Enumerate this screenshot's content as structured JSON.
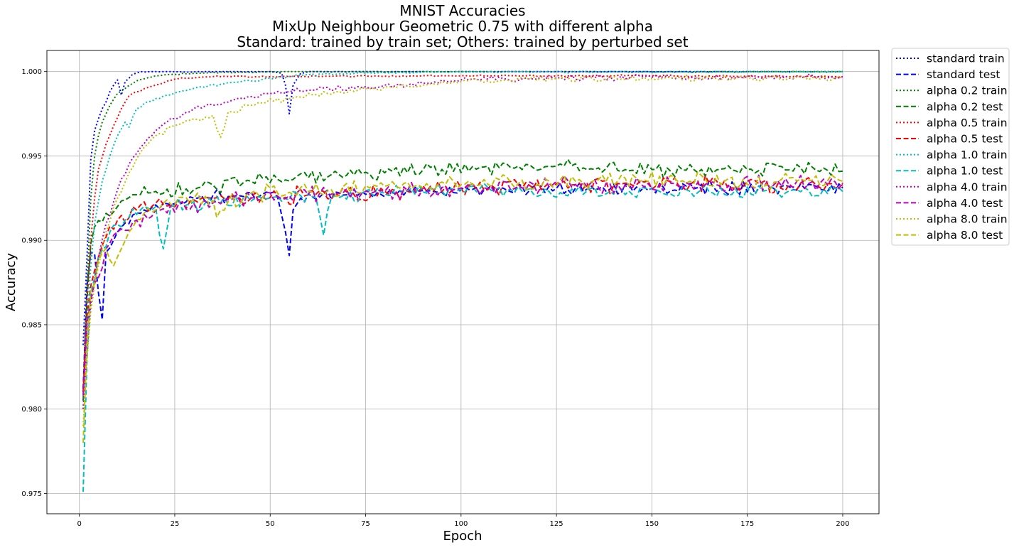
{
  "chart_data": {
    "type": "line",
    "title_lines": [
      "MNIST Accuracies",
      "MixUp Neighbour Geometric 0.75 with different alpha",
      "Standard: trained by train set; Others: trained by perturbed set"
    ],
    "xlabel": "Epoch",
    "ylabel": "Accuracy",
    "xlim": [
      -8.5,
      209.5
    ],
    "ylim": [
      0.9738,
      1.00125
    ],
    "xticks": [
      0,
      25,
      50,
      75,
      100,
      125,
      150,
      175,
      200
    ],
    "xtick_labels": [
      "0",
      "25",
      "50",
      "75",
      "100",
      "125",
      "150",
      "175",
      "200"
    ],
    "yticks": [
      0.975,
      0.98,
      0.985,
      0.99,
      0.995,
      1.0
    ],
    "ytick_labels": [
      "0.975",
      "0.980",
      "0.985",
      "0.990",
      "0.995",
      "1.000"
    ],
    "grid": true,
    "legend_position": "outside-upper-right",
    "x_start": 1,
    "x_end": 200,
    "series": [
      {
        "name": "standard train",
        "color": "#0000ff",
        "linestyle": "dotted",
        "anchors": [
          [
            1,
            0.9838
          ],
          [
            2,
            0.989
          ],
          [
            3,
            0.9948
          ],
          [
            4,
            0.9965
          ],
          [
            5,
            0.9972
          ],
          [
            6,
            0.9978
          ],
          [
            7,
            0.9982
          ],
          [
            8,
            0.9988
          ],
          [
            9,
            0.9992
          ],
          [
            10,
            0.9995
          ],
          [
            11,
            0.9986
          ],
          [
            12,
            0.9994
          ],
          [
            14,
            0.99985
          ],
          [
            16,
            1.0
          ],
          [
            50,
            1.0
          ],
          [
            53,
            0.9999
          ],
          [
            54,
            0.9992
          ],
          [
            55,
            0.9975
          ],
          [
            56,
            0.9992
          ],
          [
            58,
            0.9999
          ],
          [
            60,
            1.0
          ],
          [
            200,
            1.0
          ]
        ],
        "noise": 3e-05
      },
      {
        "name": "standard test",
        "color": "#0000ff",
        "linestyle": "dashed",
        "anchors": [
          [
            1,
            0.9812
          ],
          [
            2,
            0.9873
          ],
          [
            3,
            0.9893
          ],
          [
            4,
            0.9892
          ],
          [
            5,
            0.9869
          ],
          [
            6,
            0.9853
          ],
          [
            7,
            0.9893
          ],
          [
            10,
            0.9905
          ],
          [
            14,
            0.9915
          ],
          [
            20,
            0.9921
          ],
          [
            30,
            0.9925
          ],
          [
            40,
            0.9926
          ],
          [
            50,
            0.9928
          ],
          [
            52,
            0.9925
          ],
          [
            53,
            0.9915
          ],
          [
            54,
            0.9905
          ],
          [
            55,
            0.9891
          ],
          [
            56,
            0.9918
          ],
          [
            58,
            0.9925
          ],
          [
            70,
            0.9927
          ],
          [
            100,
            0.993
          ],
          [
            150,
            0.9931
          ],
          [
            200,
            0.9931
          ]
        ],
        "noise": 0.0004
      },
      {
        "name": "alpha 0.2 train",
        "color": "#008000",
        "linestyle": "dotted",
        "anchors": [
          [
            1,
            0.981
          ],
          [
            2,
            0.9872
          ],
          [
            3,
            0.9925
          ],
          [
            4,
            0.995
          ],
          [
            5,
            0.9962
          ],
          [
            6,
            0.997
          ],
          [
            8,
            0.998
          ],
          [
            10,
            0.9987
          ],
          [
            12,
            0.999
          ],
          [
            15,
            0.99945
          ],
          [
            20,
            0.99975
          ],
          [
            30,
            0.9999
          ],
          [
            50,
            1.0
          ],
          [
            200,
            1.0
          ]
        ],
        "noise": 5e-05
      },
      {
        "name": "alpha 0.2 test",
        "color": "#008000",
        "linestyle": "dashed",
        "anchors": [
          [
            1,
            0.9805
          ],
          [
            2,
            0.9865
          ],
          [
            3,
            0.9898
          ],
          [
            4,
            0.9908
          ],
          [
            6,
            0.9911
          ],
          [
            10,
            0.992
          ],
          [
            15,
            0.9927
          ],
          [
            20,
            0.9929
          ],
          [
            30,
            0.993
          ],
          [
            45,
            0.9935
          ],
          [
            60,
            0.9937
          ],
          [
            80,
            0.994
          ],
          [
            95,
            0.9942
          ],
          [
            110,
            0.9943
          ],
          [
            125,
            0.9944
          ],
          [
            150,
            0.9942
          ],
          [
            175,
            0.9942
          ],
          [
            200,
            0.9941
          ]
        ],
        "noise": 0.00045
      },
      {
        "name": "alpha 0.5 train",
        "color": "#ff0000",
        "linestyle": "dotted",
        "anchors": [
          [
            1,
            0.981
          ],
          [
            2,
            0.9863
          ],
          [
            3,
            0.99
          ],
          [
            4,
            0.9925
          ],
          [
            5,
            0.9942
          ],
          [
            7,
            0.9957
          ],
          [
            9,
            0.9968
          ],
          [
            11,
            0.9978
          ],
          [
            13,
            0.99855
          ],
          [
            15,
            0.9988
          ],
          [
            20,
            0.9992
          ],
          [
            25,
            0.99955
          ],
          [
            35,
            0.9997
          ],
          [
            50,
            0.9997
          ],
          [
            100,
            0.99975
          ],
          [
            150,
            0.99975
          ],
          [
            200,
            0.9997
          ]
        ],
        "noise": 5e-05
      },
      {
        "name": "alpha 0.5 test",
        "color": "#ff0000",
        "linestyle": "dashed",
        "anchors": [
          [
            1,
            0.981
          ],
          [
            2,
            0.9855
          ],
          [
            3,
            0.9873
          ],
          [
            5,
            0.989
          ],
          [
            7,
            0.9902
          ],
          [
            10,
            0.9912
          ],
          [
            15,
            0.9918
          ],
          [
            20,
            0.9922
          ],
          [
            30,
            0.9924
          ],
          [
            45,
            0.9925
          ],
          [
            60,
            0.9927
          ],
          [
            80,
            0.9929
          ],
          [
            100,
            0.9931
          ],
          [
            130,
            0.9933
          ],
          [
            160,
            0.9933
          ],
          [
            200,
            0.9933
          ]
        ],
        "noise": 0.0005
      },
      {
        "name": "alpha 1.0 train",
        "color": "#00bfbf",
        "linestyle": "dotted",
        "anchors": [
          [
            1,
            0.98
          ],
          [
            2,
            0.985
          ],
          [
            3,
            0.9885
          ],
          [
            4,
            0.991
          ],
          [
            6,
            0.9935
          ],
          [
            8,
            0.995
          ],
          [
            10,
            0.9962
          ],
          [
            12,
            0.997
          ],
          [
            13,
            0.9967
          ],
          [
            15,
            0.9978
          ],
          [
            20,
            0.9984
          ],
          [
            30,
            0.999
          ],
          [
            40,
            0.99935
          ],
          [
            50,
            0.9996
          ],
          [
            60,
            0.9998
          ],
          [
            75,
            0.9999
          ],
          [
            100,
            1.0
          ],
          [
            200,
            1.0
          ]
        ],
        "noise": 8e-05
      },
      {
        "name": "alpha 1.0 test",
        "color": "#00bfbf",
        "linestyle": "dashed",
        "anchors": [
          [
            1,
            0.9751
          ],
          [
            2,
            0.983
          ],
          [
            3,
            0.9868
          ],
          [
            5,
            0.989
          ],
          [
            8,
            0.9905
          ],
          [
            12,
            0.9912
          ],
          [
            16,
            0.9918
          ],
          [
            20,
            0.992
          ],
          [
            22,
            0.9895
          ],
          [
            24,
            0.992
          ],
          [
            35,
            0.9922
          ],
          [
            50,
            0.9925
          ],
          [
            62,
            0.9925
          ],
          [
            64,
            0.9903
          ],
          [
            66,
            0.9925
          ],
          [
            80,
            0.9928
          ],
          [
            100,
            0.993
          ],
          [
            130,
            0.9929
          ],
          [
            160,
            0.9929
          ],
          [
            200,
            0.9929
          ]
        ],
        "noise": 0.0004
      },
      {
        "name": "alpha 4.0 train",
        "color": "#bf00bf",
        "linestyle": "dotted",
        "anchors": [
          [
            1,
            0.98
          ],
          [
            2,
            0.9835
          ],
          [
            3,
            0.9862
          ],
          [
            5,
            0.989
          ],
          [
            7,
            0.991
          ],
          [
            10,
            0.993
          ],
          [
            13,
            0.9945
          ],
          [
            16,
            0.9955
          ],
          [
            20,
            0.9965
          ],
          [
            25,
            0.9972
          ],
          [
            30,
            0.9978
          ],
          [
            35,
            0.998
          ],
          [
            40,
            0.9983
          ],
          [
            50,
            0.9987
          ],
          [
            60,
            0.9989
          ],
          [
            75,
            0.9991
          ],
          [
            90,
            0.9993
          ],
          [
            100,
            0.9995
          ],
          [
            125,
            0.9996
          ],
          [
            150,
            0.99965
          ],
          [
            200,
            0.9997
          ]
        ],
        "noise": 0.00018
      },
      {
        "name": "alpha 4.0 test",
        "color": "#bf00bf",
        "linestyle": "dashed",
        "anchors": [
          [
            1,
            0.9808
          ],
          [
            2,
            0.985
          ],
          [
            3,
            0.9865
          ],
          [
            5,
            0.9878
          ],
          [
            7,
            0.9895
          ],
          [
            10,
            0.9905
          ],
          [
            15,
            0.9912
          ],
          [
            20,
            0.9918
          ],
          [
            30,
            0.9922
          ],
          [
            45,
            0.9925
          ],
          [
            60,
            0.9927
          ],
          [
            80,
            0.9929
          ],
          [
            100,
            0.9931
          ],
          [
            130,
            0.9933
          ],
          [
            160,
            0.9933
          ],
          [
            200,
            0.9934
          ]
        ],
        "noise": 0.0005
      },
      {
        "name": "alpha 8.0 train",
        "color": "#bfbf00",
        "linestyle": "dotted",
        "anchors": [
          [
            1,
            0.979
          ],
          [
            2,
            0.983
          ],
          [
            3,
            0.9858
          ],
          [
            5,
            0.9885
          ],
          [
            7,
            0.9905
          ],
          [
            10,
            0.9925
          ],
          [
            13,
            0.994
          ],
          [
            16,
            0.9952
          ],
          [
            20,
            0.9962
          ],
          [
            25,
            0.9968
          ],
          [
            30,
            0.9972
          ],
          [
            35,
            0.9974
          ],
          [
            37,
            0.9961
          ],
          [
            39,
            0.9976
          ],
          [
            45,
            0.998
          ],
          [
            55,
            0.9984
          ],
          [
            65,
            0.9987
          ],
          [
            75,
            0.999
          ],
          [
            90,
            0.9992
          ],
          [
            100,
            0.9994
          ],
          [
            125,
            0.9996
          ],
          [
            150,
            0.9996
          ],
          [
            200,
            0.9996
          ]
        ],
        "noise": 0.00018
      },
      {
        "name": "alpha 8.0 test",
        "color": "#bfbf00",
        "linestyle": "dashed",
        "anchors": [
          [
            1,
            0.978
          ],
          [
            2,
            0.9838
          ],
          [
            3,
            0.987
          ],
          [
            5,
            0.9888
          ],
          [
            7,
            0.9895
          ],
          [
            9,
            0.9885
          ],
          [
            11,
            0.9895
          ],
          [
            13,
            0.9905
          ],
          [
            15,
            0.9912
          ],
          [
            20,
            0.9918
          ],
          [
            30,
            0.9925
          ],
          [
            37,
            0.9918
          ],
          [
            45,
            0.9928
          ],
          [
            60,
            0.9929
          ],
          [
            80,
            0.9932
          ],
          [
            100,
            0.9933
          ],
          [
            130,
            0.9935
          ],
          [
            160,
            0.9935
          ],
          [
            200,
            0.9935
          ]
        ],
        "noise": 0.0005
      }
    ]
  }
}
